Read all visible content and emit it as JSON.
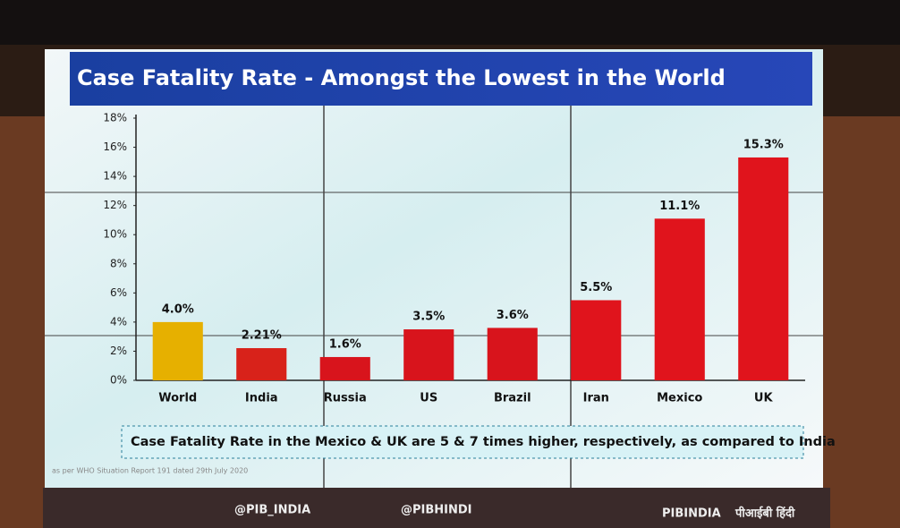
{
  "chart_data": {
    "type": "bar",
    "title": "Case Fatality Rate - Amongst the Lowest in the World",
    "categories": [
      "World",
      "India",
      "Russia",
      "US",
      "Brazil",
      "Iran",
      "Mexico",
      "UK"
    ],
    "values": [
      4.0,
      2.21,
      1.6,
      3.5,
      3.6,
      5.5,
      11.1,
      15.3
    ],
    "value_labels": [
      "4.0%",
      "2.21%",
      "1.6%",
      "3.5%",
      "3.6%",
      "5.5%",
      "11.1%",
      "15.3%"
    ],
    "colors": [
      "#e6b000",
      "#d8221a",
      "#d8141c",
      "#d8141c",
      "#d8141c",
      "#e0141c",
      "#e0141c",
      "#e0141c"
    ],
    "ylim": [
      0,
      18
    ],
    "yticks": [
      {
        "value": 0,
        "label": "0%"
      },
      {
        "value": 2,
        "label": "2%"
      },
      {
        "value": 4,
        "label": "4%"
      },
      {
        "value": 6,
        "label": "6%"
      },
      {
        "value": 8,
        "label": "8%"
      },
      {
        "value": 10,
        "label": "10%"
      },
      {
        "value": 12,
        "label": "12%"
      },
      {
        "value": 14,
        "label": "14%"
      },
      {
        "value": 16,
        "label": "16%"
      },
      {
        "value": 18,
        "label": "18%"
      }
    ],
    "grid": false,
    "annotation": "Case Fatality Rate in the Mexico & UK are 5 & 7 times higher, respectively, as compared to India",
    "footnote": "as per WHO Situation Report 191 dated 29th July 2020"
  },
  "banner": {
    "items": [
      "@PIB_INDIA",
      "@PIBHINDI",
      "PIBINDIA",
      "पीआईबी हिंदी"
    ]
  }
}
